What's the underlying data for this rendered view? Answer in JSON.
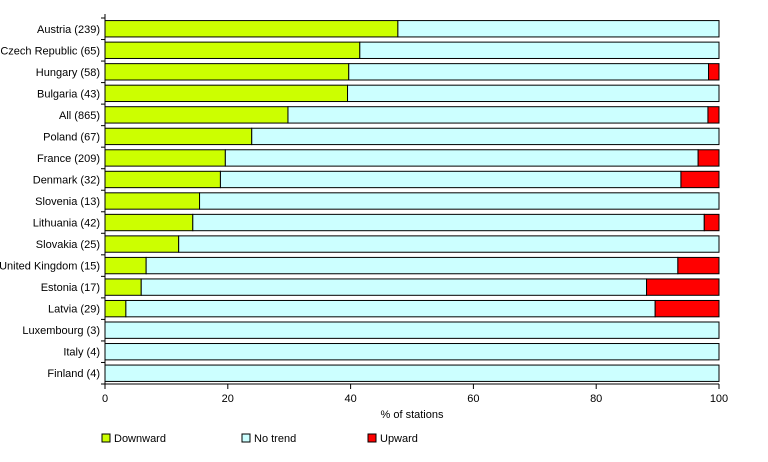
{
  "chart_data": {
    "type": "bar",
    "orientation": "horizontal",
    "stacked": true,
    "categories": [
      "Austria (239)",
      "Czech Republic (65)",
      "Hungary (58)",
      "Bulgaria (43)",
      "All (865)",
      "Poland (67)",
      "France (209)",
      "Denmark (32)",
      "Slovenia (13)",
      "Lithuania (42)",
      "Slovakia (25)",
      "United Kingdom (15)",
      "Estonia (17)",
      "Latvia (29)",
      "Luxembourg (3)",
      "Italy (4)",
      "Finland (4)"
    ],
    "series": [
      {
        "name": "Downward",
        "color": "#ccff00",
        "values": [
          47.7,
          41.5,
          39.7,
          39.5,
          29.8,
          23.9,
          19.6,
          18.8,
          15.4,
          14.3,
          12.0,
          6.7,
          5.9,
          3.4,
          0,
          0,
          0
        ]
      },
      {
        "name": "No trend",
        "color": "#ccffff",
        "values": [
          52.3,
          58.5,
          58.6,
          60.5,
          68.4,
          76.1,
          77.0,
          75.0,
          84.6,
          83.3,
          88.0,
          86.6,
          82.3,
          86.2,
          100,
          100,
          100
        ]
      },
      {
        "name": "Upward",
        "color": "#ff0000",
        "values": [
          0,
          0,
          1.7,
          0,
          1.8,
          0,
          3.4,
          6.2,
          0,
          2.4,
          0,
          6.7,
          11.8,
          10.4,
          0,
          0,
          0
        ]
      }
    ],
    "xlabel": "% of stations",
    "xlim": [
      0,
      100
    ],
    "xticks": [
      "0",
      "20",
      "40",
      "60",
      "80",
      "100"
    ],
    "grid": false,
    "legend_position": "bottom"
  }
}
